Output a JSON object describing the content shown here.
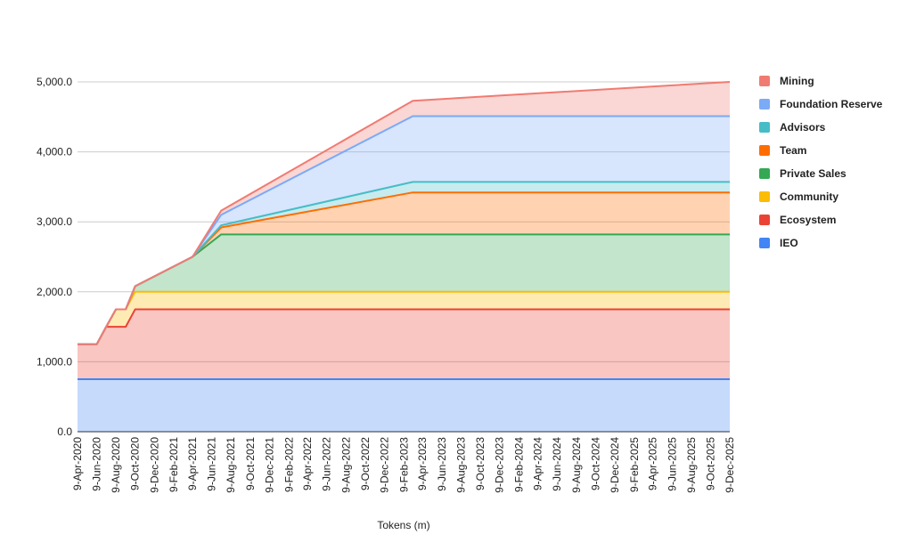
{
  "chart_data": {
    "type": "area",
    "stacked": true,
    "title": "",
    "xlabel": "Tokens (m)",
    "ylabel": "",
    "ylim": [
      0,
      5000
    ],
    "y_ticks": [
      "0.0",
      "1,000.0",
      "2,000.0",
      "3,000.0",
      "4,000.0",
      "5,000.0"
    ],
    "grid": true,
    "legend_position": "right",
    "x": [
      "2020-04-09",
      "2020-05-09",
      "2020-06-09",
      "2020-07-09",
      "2020-08-09",
      "2020-09-09",
      "2020-10-09",
      "2021-04-09",
      "2021-07-09",
      "2023-03-09",
      "2025-12-09"
    ],
    "x_tick_labels": [
      "9-Apr-2020",
      "9-Jun-2020",
      "9-Aug-2020",
      "9-Oct-2020",
      "9-Dec-2020",
      "9-Feb-2021",
      "9-Apr-2021",
      "9-Jun-2021",
      "9-Aug-2021",
      "9-Oct-2021",
      "9-Dec-2021",
      "9-Feb-2022",
      "9-Apr-2022",
      "9-Jun-2022",
      "9-Aug-2022",
      "9-Oct-2022",
      "9-Dec-2022",
      "9-Feb-2023",
      "9-Apr-2023",
      "9-Jun-2023",
      "9-Aug-2023",
      "9-Oct-2023",
      "9-Dec-2023",
      "9-Feb-2024",
      "9-Apr-2024",
      "9-Jun-2024",
      "9-Aug-2024",
      "9-Oct-2024",
      "9-Dec-2024",
      "9-Feb-2025",
      "9-Apr-2025",
      "9-Jun-2025",
      "9-Aug-2025",
      "9-Oct-2025",
      "9-Dec-2025"
    ],
    "series": [
      {
        "name": "IEO",
        "color": "#4285f4",
        "values": [
          750,
          750,
          750,
          750,
          750,
          750,
          750,
          750,
          750,
          750,
          750
        ]
      },
      {
        "name": "Ecosystem",
        "color": "#ea4335",
        "values": [
          500,
          500,
          500,
          750,
          750,
          750,
          1000,
          1000,
          1000,
          1000,
          1000
        ]
      },
      {
        "name": "Community",
        "color": "#fbbc04",
        "values": [
          0,
          0,
          0,
          0,
          250,
          250,
          250,
          250,
          250,
          250,
          250
        ]
      },
      {
        "name": "Private Sales",
        "color": "#34a853",
        "values": [
          0,
          0,
          0,
          0,
          0,
          0,
          80,
          500,
          820,
          820,
          820
        ]
      },
      {
        "name": "Team",
        "color": "#ff6d01",
        "values": [
          0,
          0,
          0,
          0,
          0,
          0,
          0,
          0,
          100,
          600,
          600
        ]
      },
      {
        "name": "Advisors",
        "color": "#46bdc6",
        "values": [
          0,
          0,
          0,
          0,
          0,
          0,
          0,
          0,
          30,
          150,
          150
        ]
      },
      {
        "name": "Foundation Reserve",
        "color": "#7baaf7",
        "values": [
          0,
          0,
          0,
          0,
          0,
          0,
          0,
          0,
          150,
          940,
          940
        ]
      },
      {
        "name": "Mining",
        "color": "#f07b72",
        "values": [
          0,
          0,
          0,
          0,
          0,
          0,
          0,
          0,
          60,
          220,
          490
        ]
      }
    ],
    "legend_order": [
      "Mining",
      "Foundation Reserve",
      "Advisors",
      "Team",
      "Private Sales",
      "Community",
      "Ecosystem",
      "IEO"
    ]
  }
}
